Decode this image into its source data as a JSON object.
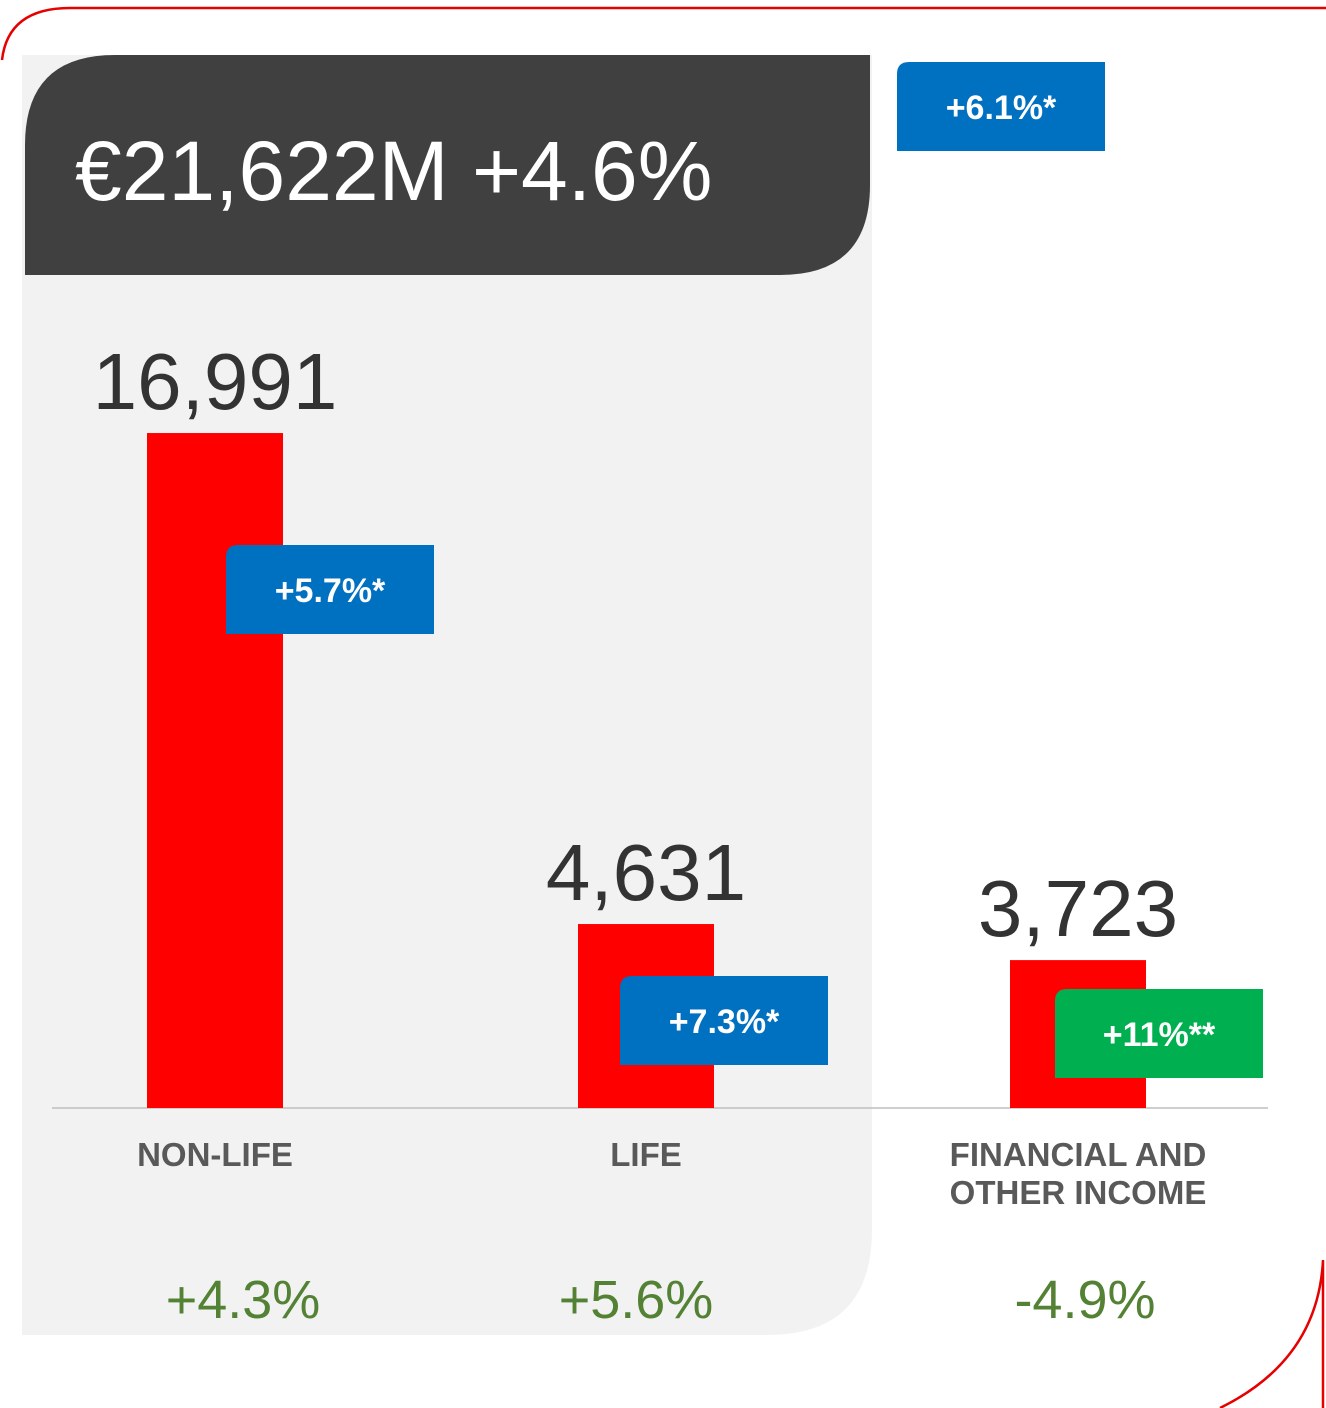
{
  "chart_data": {
    "type": "bar",
    "title": "€21,622M +4.6%",
    "title_badge": "+6.1%*",
    "title_badge_color": "#0070c0",
    "categories": [
      "NON-LIFE",
      "LIFE",
      "FINANCIAL AND OTHER INCOME"
    ],
    "values": [
      16991,
      4631,
      3723
    ],
    "value_labels": [
      "16,991",
      "4,631",
      "3,723"
    ],
    "color": "#ff0000",
    "badges": [
      "+5.7%*",
      "+7.3%*",
      "+11%**"
    ],
    "badge_colors": [
      "#0070c0",
      "#0070c0",
      "#00b050"
    ],
    "changes": [
      "+4.3%",
      "+5.6%",
      "-4.9%"
    ],
    "changes_color": "#548235",
    "ylim": [
      0,
      20000
    ]
  }
}
